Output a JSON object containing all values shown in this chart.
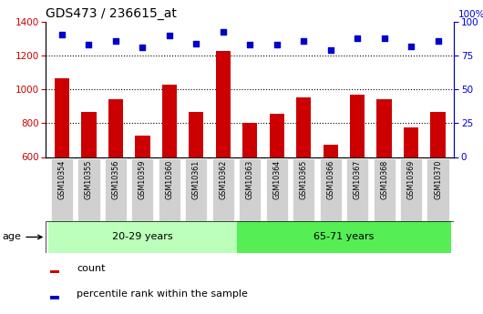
{
  "title": "GDS473 / 236615_at",
  "samples": [
    "GSM10354",
    "GSM10355",
    "GSM10356",
    "GSM10359",
    "GSM10360",
    "GSM10361",
    "GSM10362",
    "GSM10363",
    "GSM10364",
    "GSM10365",
    "GSM10366",
    "GSM10367",
    "GSM10368",
    "GSM10369",
    "GSM10370"
  ],
  "counts": [
    1065,
    868,
    945,
    728,
    1030,
    868,
    1228,
    803,
    858,
    955,
    672,
    970,
    940,
    775,
    868
  ],
  "percentiles": [
    91,
    83,
    86,
    81,
    90,
    84,
    93,
    83,
    83,
    86,
    79,
    88,
    88,
    82,
    86
  ],
  "groups": [
    {
      "label": "20-29 years",
      "start": 0,
      "end": 7,
      "color": "#aaffaa"
    },
    {
      "label": "65-71 years",
      "start": 7,
      "end": 15,
      "color": "#55ee55"
    }
  ],
  "ylim_left": [
    600,
    1400
  ],
  "ylim_right": [
    0,
    100
  ],
  "yticks_left": [
    600,
    800,
    1000,
    1200,
    1400
  ],
  "yticks_right": [
    0,
    25,
    50,
    75,
    100
  ],
  "bar_color": "#cc0000",
  "dot_color": "#0000cc",
  "grid_color": "#000000",
  "bg_color": "#ffffff",
  "tick_bg": "#d0d0d0",
  "age_label": "age",
  "legend_count": "count",
  "legend_pct": "percentile rank within the sample",
  "group_strip_color1": "#bbffbb",
  "group_strip_color2": "#55ee55"
}
